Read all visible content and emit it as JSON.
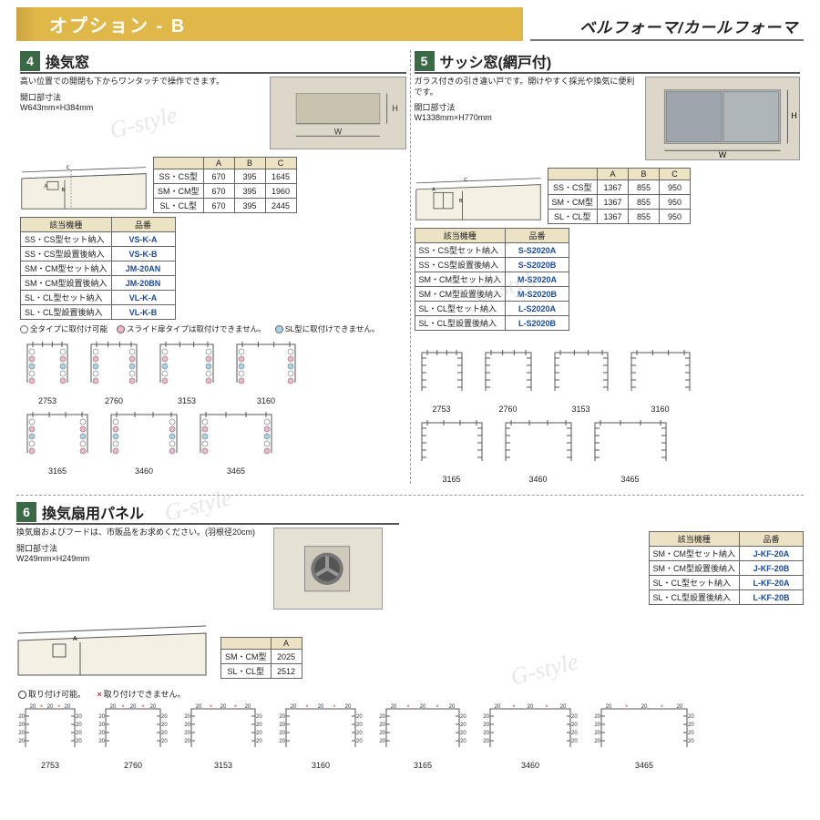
{
  "header": {
    "title": "オプション - B",
    "brand": "ベルフォーマ/カールフォーマ"
  },
  "sec4": {
    "num": "4",
    "title": "換気窓",
    "desc": "高い位置での開閉も下からワンタッチで操作できます。",
    "dim_label": "開口部寸法",
    "dim_value": "W643mm×H384mm",
    "abc": {
      "head": [
        "",
        "A",
        "B",
        "C"
      ],
      "rows": [
        [
          "SS・CS型",
          "670",
          "395",
          "1645"
        ],
        [
          "SM・CM型",
          "670",
          "395",
          "1960"
        ],
        [
          "SL・CL型",
          "670",
          "395",
          "2445"
        ]
      ]
    },
    "pn": {
      "head": [
        "該当機種",
        "品番"
      ],
      "rows": [
        [
          "SS・CS型セット納入",
          "VS-K-A"
        ],
        [
          "SS・CS型設置後納入",
          "VS-K-B"
        ],
        [
          "SM・CM型セット納入",
          "JM-20AN"
        ],
        [
          "SM・CM型設置後納入",
          "JM-20BN"
        ],
        [
          "SL・CL型セット納入",
          "VL-K-A"
        ],
        [
          "SL・CL型設置後納入",
          "VL-K-B"
        ]
      ]
    },
    "legend": {
      "all_color": "#ffffff",
      "all_text": "全タイプに取付け可能",
      "slide_color": "#f2b6c6",
      "slide_text": "スライド扉タイプは取付けできません。",
      "sl_color": "#a9d3e8",
      "sl_text": "SL型に取付けできません。"
    },
    "plan_colors": {
      "all": "#ffffff",
      "slide": "#f2b6c6",
      "sl": "#a9d3e8",
      "stroke": "#555"
    },
    "plans_row1": [
      "2753",
      "2760",
      "3153",
      "3160"
    ],
    "plans_row2": [
      "3165",
      "3460",
      "3465"
    ]
  },
  "sec5": {
    "num": "5",
    "title": "サッシ窓(網戸付)",
    "desc": "ガラス付きの引き違い戸です。開けやすく採光や換気に便利です。",
    "dim_label": "開口部寸法",
    "dim_value": "W1338mm×H770mm",
    "abc": {
      "head": [
        "",
        "A",
        "B",
        "C"
      ],
      "rows": [
        [
          "SS・CS型",
          "1367",
          "855",
          "950"
        ],
        [
          "SM・CM型",
          "1367",
          "855",
          "950"
        ],
        [
          "SL・CL型",
          "1367",
          "855",
          "950"
        ]
      ]
    },
    "pn": {
      "head": [
        "該当機種",
        "品番"
      ],
      "rows": [
        [
          "SS・CS型セット納入",
          "S-S2020A"
        ],
        [
          "SS・CS型設置後納入",
          "S-S2020B"
        ],
        [
          "SM・CM型セット納入",
          "M-S2020A"
        ],
        [
          "SM・CM型設置後納入",
          "M-S2020B"
        ],
        [
          "SL・CL型セット納入",
          "L-S2020A"
        ],
        [
          "SL・CL型設置後納入",
          "L-S2020B"
        ]
      ]
    },
    "plans_row1": [
      "2753",
      "2760",
      "3153",
      "3160"
    ],
    "plans_row2": [
      "3165",
      "3460",
      "3465"
    ]
  },
  "sec6": {
    "num": "6",
    "title": "換気扇用パネル",
    "desc": "換気扇およびフードは、市販品をお求めください。(羽根径20cm)",
    "dim_label": "開口部寸法",
    "dim_value": "W249mm×H249mm",
    "a_tbl": {
      "head": [
        "",
        "A"
      ],
      "rows": [
        [
          "SM・CM型",
          "2025"
        ],
        [
          "SL・CL型",
          "2512"
        ]
      ]
    },
    "pn": {
      "head": [
        "該当機種",
        "品番"
      ],
      "rows": [
        [
          "SM・CM型セット納入",
          "J-KF-20A"
        ],
        [
          "SM・CM型設置後納入",
          "J-KF-20B"
        ],
        [
          "SL・CL型セット納入",
          "L-KF-20A"
        ],
        [
          "SL・CL型設置後納入",
          "L-KF-20B"
        ]
      ]
    },
    "legend_ok": "取り付け可能。",
    "legend_ng_mark": "×",
    "legend_ng": "取り付けできません。",
    "plans": [
      "2753",
      "2760",
      "3153",
      "3160",
      "3165",
      "3460",
      "3465"
    ],
    "plan_mark_color": "#c43a3a",
    "plan_text_color": "#333",
    "plan_stroke": "#555",
    "plan_labels": [
      "20",
      "20",
      "20"
    ]
  },
  "watermark": "G-style"
}
